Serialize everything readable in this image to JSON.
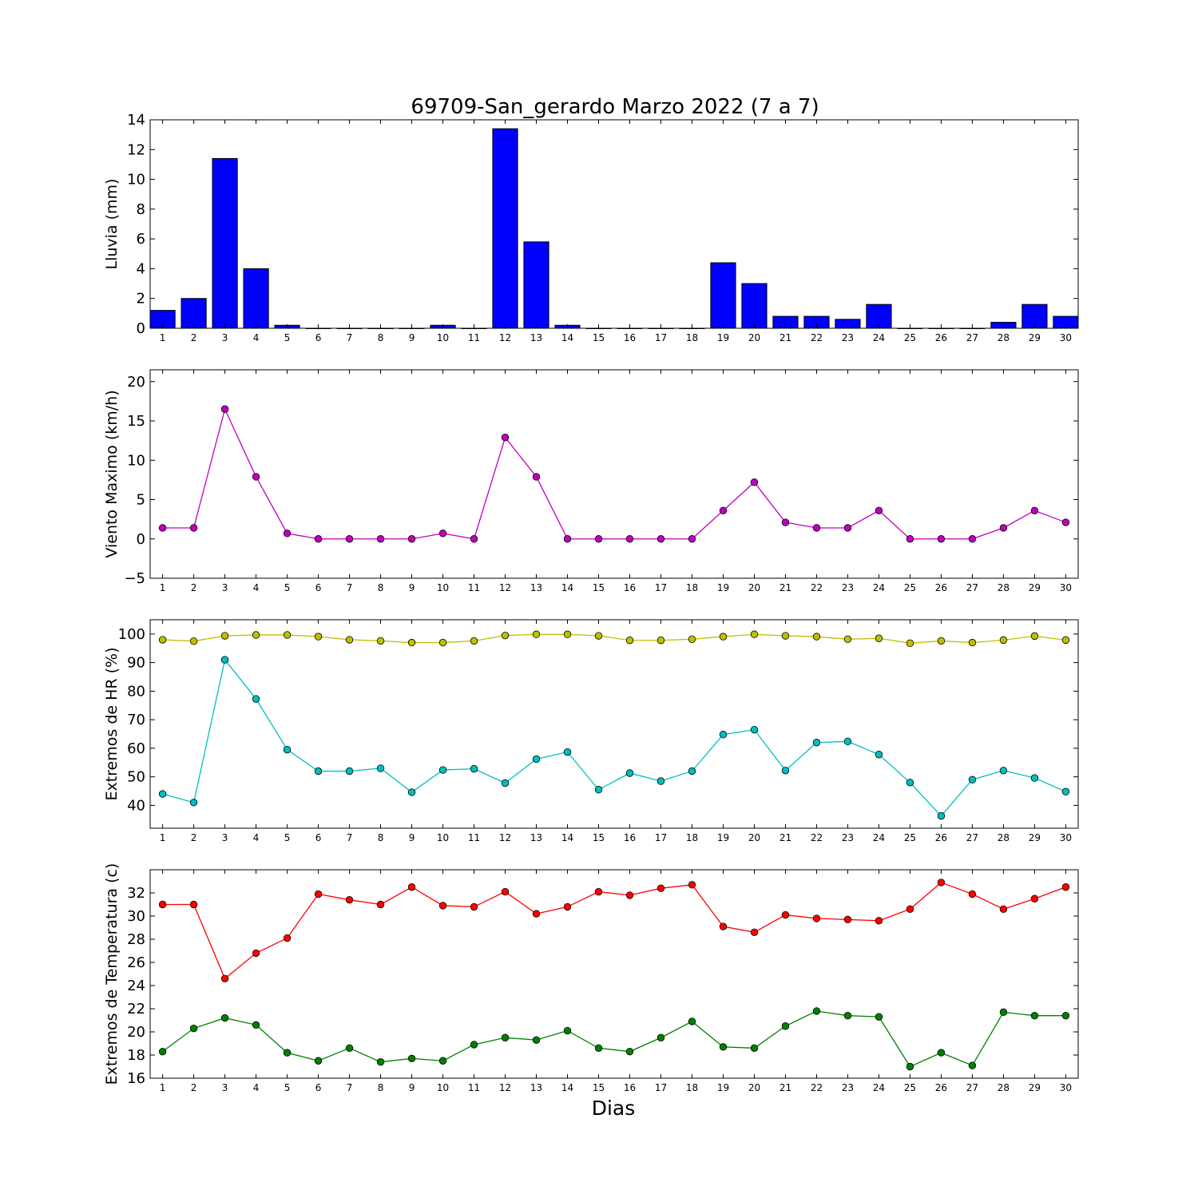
{
  "figure": {
    "title": "69709-San_gerardo Marzo 2022  (7 a 7)",
    "xlabel": "Dias"
  },
  "chart_data": [
    {
      "type": "bar",
      "ylabel": "Lluvia (mm)",
      "ylim": [
        0,
        14
      ],
      "yticks": [
        0,
        2,
        4,
        6,
        8,
        10,
        12,
        14
      ],
      "categories": [
        1,
        2,
        3,
        4,
        5,
        6,
        7,
        8,
        9,
        10,
        11,
        12,
        13,
        14,
        15,
        16,
        17,
        18,
        19,
        20,
        21,
        22,
        23,
        24,
        25,
        26,
        27,
        28,
        29,
        30
      ],
      "color": "#0000ff",
      "values": [
        1.2,
        2.0,
        11.4,
        4.0,
        0.2,
        0,
        0,
        0,
        0,
        0.2,
        0,
        13.4,
        5.8,
        0.2,
        0,
        0,
        0,
        0,
        4.4,
        3.0,
        0.8,
        0.8,
        0.6,
        1.6,
        0,
        0,
        0,
        0.4,
        1.6,
        0.8
      ]
    },
    {
      "type": "line",
      "ylabel": "Viento Maximo (km/h)",
      "ylim": [
        -5,
        21.5
      ],
      "yticks": [
        -5,
        0,
        5,
        10,
        15,
        20
      ],
      "ytick_labels": [
        "−5",
        "0",
        "5",
        "10",
        "15",
        "20"
      ],
      "x": [
        1,
        2,
        3,
        4,
        5,
        6,
        7,
        8,
        9,
        10,
        11,
        12,
        13,
        14,
        15,
        16,
        17,
        18,
        19,
        20,
        21,
        22,
        23,
        24,
        25,
        26,
        27,
        28,
        29,
        30
      ],
      "series": [
        {
          "color": "#bf00bf",
          "values": [
            1.4,
            1.4,
            16.5,
            7.9,
            0.7,
            0,
            0,
            0,
            0,
            0.7,
            0,
            12.9,
            7.9,
            0,
            0,
            0,
            0,
            0,
            3.6,
            7.2,
            2.1,
            1.4,
            1.4,
            3.6,
            0,
            0,
            0,
            1.4,
            3.6,
            2.1
          ]
        }
      ]
    },
    {
      "type": "line",
      "ylabel": "Extremos de HR (%)",
      "ylim": [
        32,
        105
      ],
      "yticks": [
        40,
        50,
        60,
        70,
        80,
        90,
        100
      ],
      "x": [
        1,
        2,
        3,
        4,
        5,
        6,
        7,
        8,
        9,
        10,
        11,
        12,
        13,
        14,
        15,
        16,
        17,
        18,
        19,
        20,
        21,
        22,
        23,
        24,
        25,
        26,
        27,
        28,
        29,
        30
      ],
      "series": [
        {
          "color": "#bfbf00",
          "values": [
            98,
            97.5,
            99.4,
            99.7,
            99.7,
            99.1,
            98,
            97.6,
            97,
            97,
            97.6,
            99.5,
            99.9,
            99.9,
            99.4,
            97.8,
            97.8,
            98.2,
            99.1,
            99.9,
            99.4,
            99.1,
            98.2,
            98.5,
            96.8,
            97.6,
            97,
            97.9,
            99.3,
            97.9
          ]
        },
        {
          "color": "#00bfbf",
          "values": [
            44,
            41,
            91,
            77.3,
            59.5,
            52,
            52,
            53,
            44.6,
            52.4,
            52.8,
            47.8,
            56.2,
            58.7,
            45.5,
            51.3,
            48.5,
            52,
            64.8,
            66.5,
            52.2,
            62,
            62.4,
            57.8,
            48,
            36.3,
            49,
            52.2,
            49.6,
            44.8
          ]
        }
      ]
    },
    {
      "type": "line",
      "ylabel": "Extremos de Temperatura (c)",
      "ylim": [
        16,
        34
      ],
      "yticks": [
        16,
        18,
        20,
        22,
        24,
        26,
        28,
        30,
        32
      ],
      "x": [
        1,
        2,
        3,
        4,
        5,
        6,
        7,
        8,
        9,
        10,
        11,
        12,
        13,
        14,
        15,
        16,
        17,
        18,
        19,
        20,
        21,
        22,
        23,
        24,
        25,
        26,
        27,
        28,
        29,
        30
      ],
      "series": [
        {
          "color": "#ff0000",
          "values": [
            31,
            31,
            24.6,
            26.8,
            28.1,
            31.9,
            31.4,
            31,
            32.5,
            30.9,
            30.8,
            32.1,
            30.2,
            30.8,
            32.1,
            31.8,
            32.4,
            32.7,
            29.1,
            28.6,
            30.1,
            29.8,
            29.7,
            29.6,
            30.6,
            32.9,
            31.9,
            30.6,
            31.5,
            32.5
          ]
        },
        {
          "color": "#008000",
          "values": [
            18.3,
            20.3,
            21.2,
            20.6,
            18.2,
            17.5,
            18.6,
            17.4,
            17.7,
            17.5,
            18.9,
            19.5,
            19.3,
            20.1,
            18.6,
            18.3,
            19.5,
            20.9,
            18.7,
            18.6,
            20.5,
            21.8,
            21.4,
            21.3,
            17,
            18.2,
            17.1,
            21.7,
            21.4,
            21.4
          ]
        }
      ]
    }
  ]
}
